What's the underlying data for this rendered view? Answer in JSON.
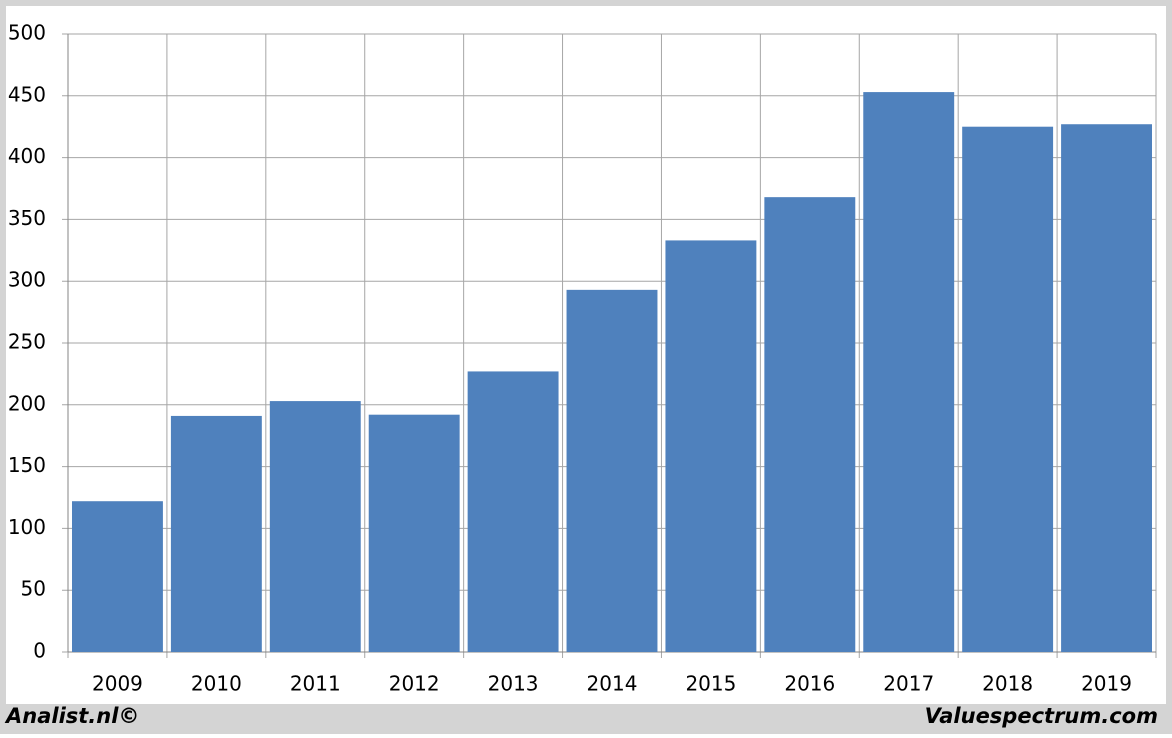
{
  "chart_data": {
    "type": "bar",
    "categories": [
      "2009",
      "2010",
      "2011",
      "2012",
      "2013",
      "2014",
      "2015",
      "2016",
      "2017",
      "2018",
      "2019"
    ],
    "values": [
      122,
      191,
      203,
      192,
      227,
      293,
      333,
      368,
      453,
      425,
      427
    ],
    "color": "#4f81bd",
    "ylim": [
      0,
      500
    ],
    "yticks": [
      0,
      50,
      100,
      150,
      200,
      250,
      300,
      350,
      400,
      450,
      500
    ],
    "grid": true
  },
  "footer": {
    "left": "Analist.nl©",
    "right": "Valuespectrum.com"
  }
}
